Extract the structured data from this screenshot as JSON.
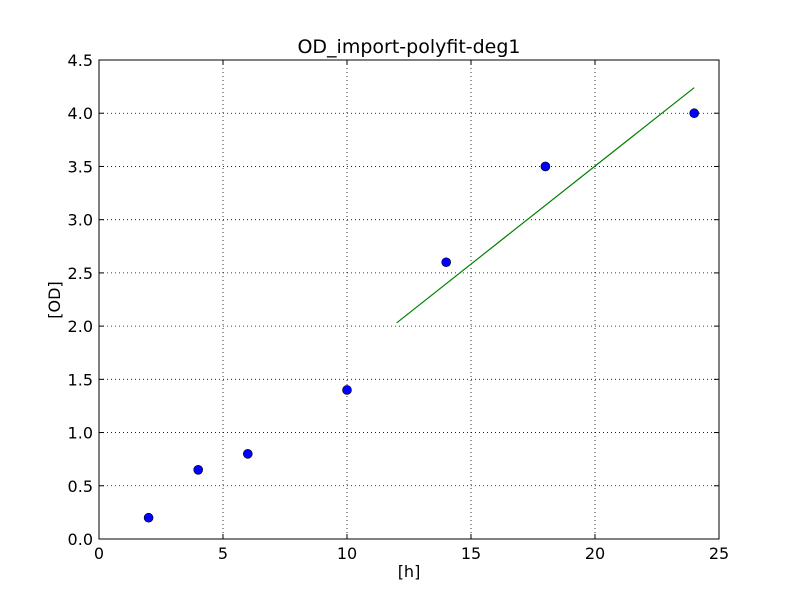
{
  "chart_data": {
    "type": "scatter",
    "title": "OD_import-polyfit-deg1",
    "xlabel": "[h]",
    "ylabel": "[OD]",
    "xlim": [
      0,
      25
    ],
    "ylim": [
      0,
      4.5
    ],
    "x_ticks": [
      0,
      5,
      10,
      15,
      20,
      25
    ],
    "y_ticks": [
      0.0,
      0.5,
      1.0,
      1.5,
      2.0,
      2.5,
      3.0,
      3.5,
      4.0,
      4.5
    ],
    "x_tick_labels": [
      "0",
      "5",
      "10",
      "15",
      "20",
      "25"
    ],
    "y_tick_labels": [
      "0.0",
      "0.5",
      "1.0",
      "1.5",
      "2.0",
      "2.5",
      "3.0",
      "3.5",
      "4.0",
      "4.5"
    ],
    "grid": true,
    "series": [
      {
        "kind": "scatter",
        "color": "#0000ff",
        "x": [
          2,
          4,
          6,
          10,
          14,
          18,
          24
        ],
        "y": [
          0.2,
          0.65,
          0.8,
          1.4,
          2.6,
          3.5,
          4.0
        ]
      },
      {
        "kind": "line",
        "color": "#008000",
        "x": [
          12,
          24
        ],
        "y": [
          2.03,
          4.24
        ]
      }
    ]
  }
}
